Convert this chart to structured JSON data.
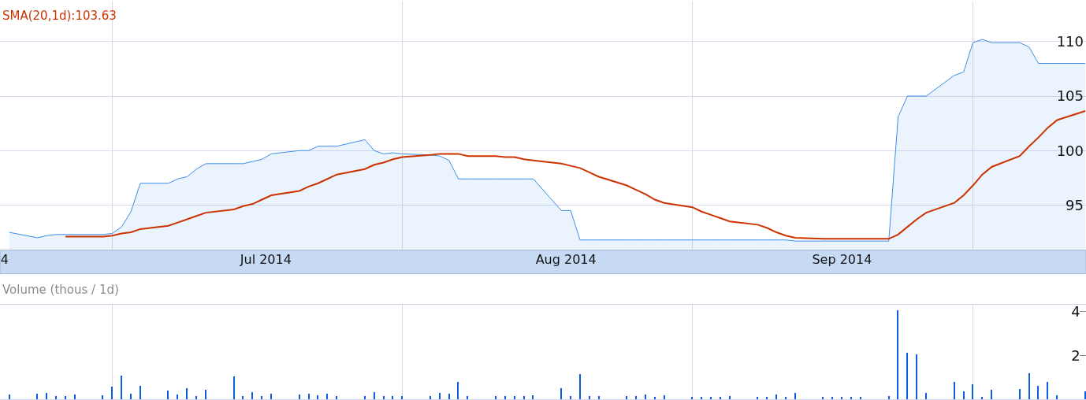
{
  "chart_data": [
    {
      "type": "area",
      "x": [
        "2014-06-20",
        "2014-06-23",
        "2014-06-24",
        "2014-06-25",
        "2014-06-26",
        "2014-06-27",
        "2014-06-30",
        "2014-07-01",
        "2014-07-02",
        "2014-07-03",
        "2014-07-04",
        "2014-07-07",
        "2014-07-08",
        "2014-07-09",
        "2014-07-10",
        "2014-07-11",
        "2014-07-14",
        "2014-07-15",
        "2014-07-16",
        "2014-07-17",
        "2014-07-18",
        "2014-07-21",
        "2014-07-22",
        "2014-07-23",
        "2014-07-24",
        "2014-07-25",
        "2014-07-28",
        "2014-07-29",
        "2014-07-30",
        "2014-07-31",
        "2014-08-01",
        "2014-08-04",
        "2014-08-05",
        "2014-08-06",
        "2014-08-07",
        "2014-08-08",
        "2014-08-11",
        "2014-08-12",
        "2014-08-13",
        "2014-08-14",
        "2014-08-15",
        "2014-08-18",
        "2014-08-19",
        "2014-08-20",
        "2014-08-21",
        "2014-08-22",
        "2014-08-25",
        "2014-08-26",
        "2014-08-27",
        "2014-08-28",
        "2014-08-29",
        "2014-09-01",
        "2014-09-02",
        "2014-09-03",
        "2014-09-04",
        "2014-09-05",
        "2014-09-08",
        "2014-09-09",
        "2014-09-10",
        "2014-09-11",
        "2014-09-12",
        "2014-09-15",
        "2014-09-16",
        "2014-09-17",
        "2014-09-18",
        "2014-09-19",
        "2014-09-22",
        "2014-09-23",
        "2014-09-24",
        "2014-09-25",
        "2014-09-26",
        "2014-09-29",
        "2014-09-30",
        "2014-10-01",
        "2014-10-02",
        "2014-10-03",
        "2014-10-06",
        "2014-10-07",
        "2014-10-08",
        "2014-10-09",
        "2014-10-10",
        "2014-10-13"
      ],
      "series": [
        {
          "type": "area",
          "color": "#3b8ee8",
          "values": [
            92.5,
            92.0,
            92.2,
            92.3,
            92.3,
            92.3,
            92.3,
            92.4,
            93.0,
            94.4,
            97.0,
            97.0,
            97.4,
            97.6,
            98.3,
            98.8,
            98.8,
            98.8,
            99.0,
            99.2,
            99.7,
            100.0,
            100.0,
            100.4,
            100.4,
            100.4,
            101.0,
            100.0,
            99.7,
            99.8,
            99.7,
            99.6,
            99.5,
            99.1,
            97.4,
            97.4,
            97.4,
            97.4,
            97.4,
            97.4,
            97.4,
            94.5,
            94.5,
            91.8,
            91.8,
            91.8,
            91.8,
            91.8,
            91.8,
            91.8,
            91.8,
            91.8,
            91.8,
            91.8,
            91.8,
            91.8,
            91.8,
            91.8,
            91.8,
            91.8,
            91.7,
            91.7,
            91.7,
            91.7,
            91.7,
            91.7,
            91.7,
            103.1,
            105.0,
            105.0,
            105.0,
            106.9,
            107.2,
            109.9,
            110.2,
            109.9,
            109.9,
            109.5,
            108.0,
            108.0,
            108.0,
            108.0
          ]
        },
        {
          "type": "line",
          "name": "SMA(20,1d):103.63",
          "color": "#cc3300",
          "values": [
            null,
            null,
            null,
            null,
            92.1,
            92.1,
            92.1,
            92.2,
            92.4,
            92.5,
            92.8,
            93.1,
            93.4,
            93.7,
            94.0,
            94.3,
            94.6,
            94.9,
            95.1,
            95.5,
            95.9,
            96.3,
            96.7,
            97.0,
            97.4,
            97.8,
            98.3,
            98.7,
            98.9,
            99.2,
            99.4,
            99.6,
            99.7,
            99.7,
            99.7,
            99.5,
            99.5,
            99.4,
            99.4,
            99.2,
            99.1,
            98.8,
            98.6,
            98.4,
            98.0,
            97.6,
            96.8,
            96.4,
            96.0,
            95.5,
            95.2,
            94.8,
            94.4,
            94.1,
            93.8,
            93.5,
            93.2,
            92.9,
            92.5,
            92.2,
            92.0,
            91.9,
            91.9,
            91.9,
            91.9,
            91.9,
            91.9,
            92.3,
            93.0,
            93.7,
            94.3,
            95.2,
            95.9,
            96.8,
            97.8,
            98.5,
            99.5,
            100.4,
            101.2,
            102.1,
            102.8,
            103.63
          ]
        }
      ],
      "xlim": [
        "2014-06-19T00:00",
        "2014-10-13T02:00"
      ],
      "xticks": [
        {
          "value": "2014-06-19T12:00",
          "label": "4"
        },
        {
          "value": "2014-07-17T10:00",
          "label": "Jul 2014"
        },
        {
          "value": "2014-08-18T12:00",
          "label": "Aug 2014"
        },
        {
          "value": "2014-09-17",
          "label": "Sep 2014"
        },
        {
          "value": "2014-07-01",
          "label": null
        },
        {
          "value": "2014-08-01",
          "label": null
        },
        {
          "value": "2014-09-01",
          "label": null
        },
        {
          "value": "2014-10-01",
          "label": null
        }
      ],
      "ylim": [
        90.86,
        113.67
      ],
      "yticks": [
        95,
        100,
        105,
        110
      ],
      "grid": true
    },
    {
      "type": "bar",
      "title": "Volume (thous / 1d)",
      "x": [
        "2014-06-20",
        "2014-06-23",
        "2014-06-24",
        "2014-06-25",
        "2014-06-26",
        "2014-06-27",
        "2014-06-30",
        "2014-07-01",
        "2014-07-02",
        "2014-07-03",
        "2014-07-04",
        "2014-07-07",
        "2014-07-08",
        "2014-07-09",
        "2014-07-10",
        "2014-07-11",
        "2014-07-14",
        "2014-07-15",
        "2014-07-16",
        "2014-07-17",
        "2014-07-18",
        "2014-07-21",
        "2014-07-22",
        "2014-07-23",
        "2014-07-24",
        "2014-07-25",
        "2014-07-28",
        "2014-07-29",
        "2014-07-30",
        "2014-07-31",
        "2014-08-01",
        "2014-08-04",
        "2014-08-05",
        "2014-08-06",
        "2014-08-07",
        "2014-08-08",
        "2014-08-11",
        "2014-08-12",
        "2014-08-13",
        "2014-08-14",
        "2014-08-15",
        "2014-08-18",
        "2014-08-19",
        "2014-08-20",
        "2014-08-21",
        "2014-08-22",
        "2014-08-25",
        "2014-08-26",
        "2014-08-27",
        "2014-08-28",
        "2014-08-29",
        "2014-09-01",
        "2014-09-02",
        "2014-09-03",
        "2014-09-04",
        "2014-09-05",
        "2014-09-08",
        "2014-09-09",
        "2014-09-10",
        "2014-09-11",
        "2014-09-12",
        "2014-09-15",
        "2014-09-16",
        "2014-09-17",
        "2014-09-18",
        "2014-09-19",
        "2014-09-22",
        "2014-09-23",
        "2014-09-24",
        "2014-09-25",
        "2014-09-26",
        "2014-09-29",
        "2014-09-30",
        "2014-10-01",
        "2014-10-02",
        "2014-10-03",
        "2014-10-06",
        "2014-10-07",
        "2014-10-08",
        "2014-10-09",
        "2014-10-10",
        "2014-10-13"
      ],
      "values": [
        0.19,
        0.25,
        0.27,
        0.11,
        0.11,
        0.19,
        0.17,
        0.57,
        1.06,
        0.22,
        0.6,
        0.37,
        0.19,
        0.48,
        0.13,
        0.4,
        1.02,
        0.11,
        0.29,
        0.11,
        0.22,
        0.19,
        0.25,
        0.16,
        0.22,
        0.11,
        0.11,
        0.3,
        0.11,
        0.11,
        0.11,
        0.11,
        0.27,
        0.25,
        0.76,
        0.11,
        0.11,
        0.11,
        0.11,
        0.11,
        0.17,
        0.49,
        0.11,
        1.14,
        0.11,
        0.11,
        0.11,
        0.14,
        0.19,
        0.1,
        0.17,
        0.1,
        0.1,
        0.1,
        0.1,
        0.14,
        0.1,
        0.1,
        0.19,
        0.1,
        0.27,
        0.1,
        0.1,
        0.1,
        0.1,
        0.1,
        0.11,
        4.05,
        2.11,
        2.03,
        0.27,
        0.78,
        0.33,
        0.65,
        0.1,
        0.41,
        0.44,
        1.17,
        0.6,
        0.78,
        0.16,
        0.33
      ],
      "color": "#0a5ce0",
      "xlim": [
        "2014-06-19T00:00",
        "2014-10-13T02:00"
      ],
      "xticks": [
        {
          "value": "2014-07-01",
          "label": null
        },
        {
          "value": "2014-08-01",
          "label": null
        },
        {
          "value": "2014-09-01",
          "label": null
        },
        {
          "value": "2014-10-01",
          "label": null
        }
      ],
      "ylim": [
        0,
        4.3
      ],
      "yticks": [
        2,
        4
      ],
      "grid": "x",
      "tick_labels": "y"
    }
  ]
}
